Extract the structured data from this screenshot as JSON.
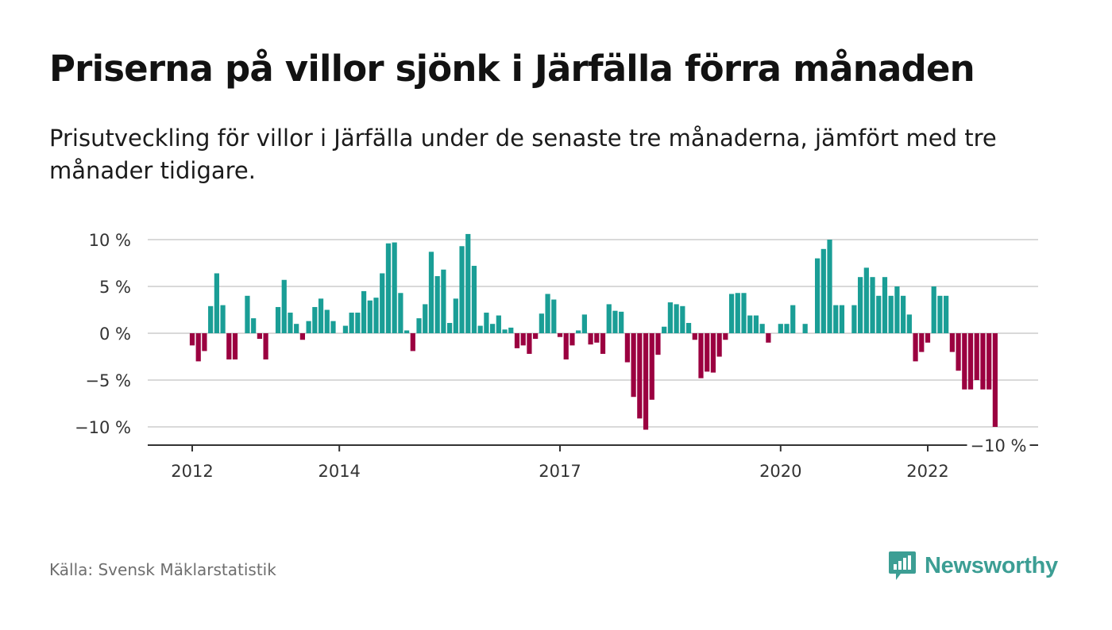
{
  "title": "Priserna på villor sjönk i Järfälla förra månaden",
  "subtitle": "Prisutveckling för villor i Järfälla under de senaste tre månaderna, jämfört med tre månader tidigare.",
  "source": "Källa: Svensk Mäklarstatistik",
  "brand": {
    "name": "Newsworthy",
    "icon": "newsworthy-logo-icon",
    "color": "#3c9e94"
  },
  "colors": {
    "positive": "#1a9e96",
    "negative": "#9b0040",
    "grid": "#d9d9d9",
    "axis": "#333333"
  },
  "chart_data": {
    "type": "bar",
    "title": "",
    "xlabel": "",
    "ylabel": "",
    "ylim": [
      -12,
      11
    ],
    "y_ticks": [
      {
        "value": 10,
        "label": "10 %"
      },
      {
        "value": 5,
        "label": "5 %"
      },
      {
        "value": 0,
        "label": "0 %"
      },
      {
        "value": -5,
        "label": "−5 %"
      },
      {
        "value": -10,
        "label": "−10 %"
      }
    ],
    "x_ticks": [
      {
        "date": "2012-01",
        "label": "2012"
      },
      {
        "date": "2014-01",
        "label": "2014"
      },
      {
        "date": "2017-01",
        "label": "2017"
      },
      {
        "date": "2020-01",
        "label": "2020"
      },
      {
        "date": "2022-01",
        "label": "2022"
      }
    ],
    "x_range": [
      "2011-07",
      "2023-12"
    ],
    "annotation": {
      "date": "2023-02",
      "value": -10,
      "label": "−10 %"
    },
    "grid": true,
    "series": [
      {
        "values": [
          {
            "x": "2012-01",
            "y": -1.3
          },
          {
            "x": "2012-02",
            "y": -3.0
          },
          {
            "x": "2012-03",
            "y": -1.9
          },
          {
            "x": "2012-04",
            "y": 2.9
          },
          {
            "x": "2012-05",
            "y": 6.4
          },
          {
            "x": "2012-06",
            "y": 3.0
          },
          {
            "x": "2012-07",
            "y": -2.8
          },
          {
            "x": "2012-08",
            "y": -2.8
          },
          {
            "x": "2012-09",
            "y": 0.0
          },
          {
            "x": "2012-10",
            "y": 4.0
          },
          {
            "x": "2012-11",
            "y": 1.6
          },
          {
            "x": "2012-12",
            "y": -0.6
          },
          {
            "x": "2013-01",
            "y": -2.8
          },
          {
            "x": "2013-02",
            "y": 0.0
          },
          {
            "x": "2013-03",
            "y": 2.8
          },
          {
            "x": "2013-04",
            "y": 5.7
          },
          {
            "x": "2013-05",
            "y": 2.2
          },
          {
            "x": "2013-06",
            "y": 1.0
          },
          {
            "x": "2013-07",
            "y": -0.7
          },
          {
            "x": "2013-08",
            "y": 1.3
          },
          {
            "x": "2013-09",
            "y": 2.8
          },
          {
            "x": "2013-10",
            "y": 3.7
          },
          {
            "x": "2013-11",
            "y": 2.5
          },
          {
            "x": "2013-12",
            "y": 1.3
          },
          {
            "x": "2014-01",
            "y": 0.0
          },
          {
            "x": "2014-02",
            "y": 0.8
          },
          {
            "x": "2014-03",
            "y": 2.2
          },
          {
            "x": "2014-04",
            "y": 2.2
          },
          {
            "x": "2014-05",
            "y": 4.5
          },
          {
            "x": "2014-06",
            "y": 3.5
          },
          {
            "x": "2014-07",
            "y": 3.8
          },
          {
            "x": "2014-08",
            "y": 6.4
          },
          {
            "x": "2014-09",
            "y": 9.6
          },
          {
            "x": "2014-10",
            "y": 9.7
          },
          {
            "x": "2014-11",
            "y": 4.3
          },
          {
            "x": "2014-12",
            "y": 0.3
          },
          {
            "x": "2015-01",
            "y": -1.9
          },
          {
            "x": "2015-02",
            "y": 1.6
          },
          {
            "x": "2015-03",
            "y": 3.1
          },
          {
            "x": "2015-04",
            "y": 8.7
          },
          {
            "x": "2015-05",
            "y": 6.1
          },
          {
            "x": "2015-06",
            "y": 6.8
          },
          {
            "x": "2015-07",
            "y": 1.1
          },
          {
            "x": "2015-08",
            "y": 3.7
          },
          {
            "x": "2015-09",
            "y": 9.3
          },
          {
            "x": "2015-10",
            "y": 10.6
          },
          {
            "x": "2015-11",
            "y": 7.2
          },
          {
            "x": "2015-12",
            "y": 0.8
          },
          {
            "x": "2016-01",
            "y": 2.2
          },
          {
            "x": "2016-02",
            "y": 1.0
          },
          {
            "x": "2016-03",
            "y": 1.9
          },
          {
            "x": "2016-04",
            "y": 0.4
          },
          {
            "x": "2016-05",
            "y": 0.6
          },
          {
            "x": "2016-06",
            "y": -1.6
          },
          {
            "x": "2016-07",
            "y": -1.3
          },
          {
            "x": "2016-08",
            "y": -2.2
          },
          {
            "x": "2016-09",
            "y": -0.6
          },
          {
            "x": "2016-10",
            "y": 2.1
          },
          {
            "x": "2016-11",
            "y": 4.2
          },
          {
            "x": "2016-12",
            "y": 3.6
          },
          {
            "x": "2017-01",
            "y": -0.4
          },
          {
            "x": "2017-02",
            "y": -2.8
          },
          {
            "x": "2017-03",
            "y": -1.3
          },
          {
            "x": "2017-04",
            "y": 0.3
          },
          {
            "x": "2017-05",
            "y": 2.0
          },
          {
            "x": "2017-06",
            "y": -1.2
          },
          {
            "x": "2017-07",
            "y": -1.0
          },
          {
            "x": "2017-08",
            "y": -2.2
          },
          {
            "x": "2017-09",
            "y": 3.1
          },
          {
            "x": "2017-10",
            "y": 2.4
          },
          {
            "x": "2017-11",
            "y": 2.3
          },
          {
            "x": "2017-12",
            "y": -3.1
          },
          {
            "x": "2018-01",
            "y": -6.8
          },
          {
            "x": "2018-02",
            "y": -9.1
          },
          {
            "x": "2018-03",
            "y": -10.3
          },
          {
            "x": "2018-04",
            "y": -7.1
          },
          {
            "x": "2018-05",
            "y": -2.3
          },
          {
            "x": "2018-06",
            "y": 0.7
          },
          {
            "x": "2018-07",
            "y": 3.3
          },
          {
            "x": "2018-08",
            "y": 3.1
          },
          {
            "x": "2018-09",
            "y": 2.9
          },
          {
            "x": "2018-10",
            "y": 1.1
          },
          {
            "x": "2018-11",
            "y": -0.7
          },
          {
            "x": "2018-12",
            "y": -4.8
          },
          {
            "x": "2019-01",
            "y": -4.1
          },
          {
            "x": "2019-02",
            "y": -4.2
          },
          {
            "x": "2019-03",
            "y": -2.5
          },
          {
            "x": "2019-04",
            "y": -0.7
          },
          {
            "x": "2019-05",
            "y": 4.2
          },
          {
            "x": "2019-06",
            "y": 4.3
          },
          {
            "x": "2019-07",
            "y": 4.3
          },
          {
            "x": "2019-08",
            "y": 1.9
          },
          {
            "x": "2019-09",
            "y": 1.9
          },
          {
            "x": "2019-10",
            "y": 1.0
          },
          {
            "x": "2019-11",
            "y": -1.0
          },
          {
            "x": "2019-12",
            "y": 0.0
          },
          {
            "x": "2020-01",
            "y": 1.0
          },
          {
            "x": "2020-02",
            "y": 1.0
          },
          {
            "x": "2020-03",
            "y": 3.0
          },
          {
            "x": "2020-04",
            "y": 0.0
          },
          {
            "x": "2020-05",
            "y": 1.0
          },
          {
            "x": "2020-06",
            "y": 0.0
          },
          {
            "x": "2020-07",
            "y": 8.0
          },
          {
            "x": "2020-08",
            "y": 9.0
          },
          {
            "x": "2020-09",
            "y": 10.0
          },
          {
            "x": "2020-10",
            "y": 3.0
          },
          {
            "x": "2020-11",
            "y": 3.0
          },
          {
            "x": "2020-12",
            "y": 0.0
          },
          {
            "x": "2021-01",
            "y": 3.0
          },
          {
            "x": "2021-02",
            "y": 6.0
          },
          {
            "x": "2021-03",
            "y": 7.0
          },
          {
            "x": "2021-04",
            "y": 6.0
          },
          {
            "x": "2021-05",
            "y": 4.0
          },
          {
            "x": "2021-06",
            "y": 6.0
          },
          {
            "x": "2021-07",
            "y": 4.0
          },
          {
            "x": "2021-08",
            "y": 5.0
          },
          {
            "x": "2021-09",
            "y": 4.0
          },
          {
            "x": "2021-10",
            "y": 2.0
          },
          {
            "x": "2021-11",
            "y": -3.0
          },
          {
            "x": "2021-12",
            "y": -2.0
          },
          {
            "x": "2022-01",
            "y": -1.0
          },
          {
            "x": "2022-02",
            "y": 5.0
          },
          {
            "x": "2022-03",
            "y": 4.0
          },
          {
            "x": "2022-04",
            "y": 4.0
          },
          {
            "x": "2022-05",
            "y": -2.0
          },
          {
            "x": "2022-06",
            "y": -4.0
          },
          {
            "x": "2022-07",
            "y": -6.0
          },
          {
            "x": "2022-08",
            "y": -6.0
          },
          {
            "x": "2022-09",
            "y": -5.0
          },
          {
            "x": "2022-10",
            "y": -6.0
          },
          {
            "x": "2022-11",
            "y": -6.0
          },
          {
            "x": "2022-12",
            "y": -10.0
          }
        ]
      }
    ]
  }
}
